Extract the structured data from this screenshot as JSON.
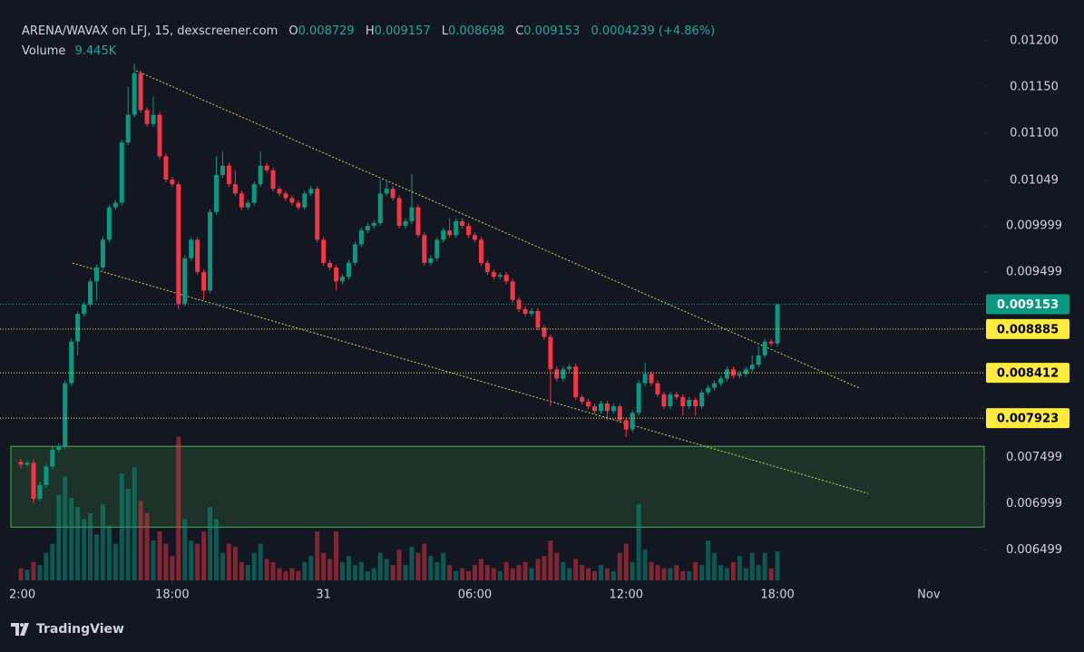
{
  "chart_data": {
    "type": "candlestick",
    "title": "ARENA/WAVAX on LFJ, 15, dexscreener.com",
    "header": {
      "open": {
        "label": "O",
        "value": 0.008729
      },
      "high": {
        "label": "H",
        "value": 0.009157
      },
      "low": {
        "label": "L",
        "value": 0.008698
      },
      "close": {
        "label": "C",
        "value": 0.009153
      },
      "change": 0.0004239,
      "change_pct": {
        "value": 4.86,
        "label": "(+4.86%)"
      }
    },
    "up_color": "#089981",
    "down_color": "#f23645",
    "x": [
      0,
      0.25,
      0.5,
      0.75,
      1,
      1.25,
      1.5,
      1.75,
      2,
      2.25,
      2.5,
      2.75,
      3,
      3.25,
      3.5,
      3.75,
      4,
      4.25,
      4.5,
      4.75,
      5,
      5.25,
      5.5,
      5.75,
      6,
      6.25,
      6.5,
      6.75,
      7,
      7.25,
      7.5,
      7.75,
      8,
      8.25,
      8.5,
      8.75,
      9,
      9.25,
      9.5,
      9.75,
      10,
      10.25,
      10.5,
      10.75,
      11,
      11.25,
      11.5,
      11.75,
      12,
      12.25,
      12.5,
      12.75,
      13,
      13.25,
      13.5,
      13.75,
      14,
      14.25,
      14.5,
      14.75,
      15,
      15.25,
      15.5,
      15.75,
      16,
      16.25,
      16.5,
      16.75,
      17,
      17.25,
      17.5,
      17.75,
      18,
      18.25,
      18.5,
      18.75,
      19,
      19.25,
      19.5,
      19.75,
      20,
      20.25,
      20.5,
      20.75,
      21,
      21.25,
      21.5,
      21.75,
      22,
      22.25,
      22.5,
      22.75,
      23,
      23.25,
      23.5,
      23.75,
      24,
      24.25,
      24.5,
      24.75,
      25,
      25.25,
      25.5,
      25.75,
      26,
      26.25,
      26.5,
      26.75,
      27,
      27.25,
      27.5,
      27.75,
      28,
      28.25,
      28.5,
      28.75,
      29,
      29.25,
      29.5,
      29.75,
      30
    ],
    "open": [
      0.00745,
      0.00742,
      0.00744,
      0.00705,
      0.0072,
      0.0074,
      0.00758,
      0.00762,
      0.0083,
      0.00875,
      0.00905,
      0.00915,
      0.0094,
      0.00955,
      0.00985,
      0.0102,
      0.01025,
      0.0109,
      0.0112,
      0.01165,
      0.01125,
      0.0111,
      0.0112,
      0.01075,
      0.0105,
      0.01045,
      0.00916,
      0.00965,
      0.00985,
      0.0095,
      0.0093,
      0.01015,
      0.01055,
      0.01065,
      0.01045,
      0.01035,
      0.0102,
      0.01025,
      0.01045,
      0.01065,
      0.0106,
      0.0104,
      0.01035,
      0.0103,
      0.01025,
      0.0102,
      0.01035,
      0.0104,
      0.00985,
      0.0096,
      0.00955,
      0.0094,
      0.00945,
      0.0096,
      0.0098,
      0.00995,
      0.01,
      0.01003,
      0.01035,
      0.0104,
      0.0103,
      0.01,
      0.01005,
      0.0102,
      0.0099,
      0.0096,
      0.00965,
      0.00985,
      0.00995,
      0.0099,
      0.01005,
      0.01,
      0.0099,
      0.00985,
      0.0096,
      0.0095,
      0.00945,
      0.00947,
      0.0094,
      0.0092,
      0.0091,
      0.00905,
      0.00908,
      0.0089,
      0.0088,
      0.00845,
      0.00835,
      0.00845,
      0.00848,
      0.00815,
      0.0081,
      0.00805,
      0.008,
      0.00808,
      0.008,
      0.00805,
      0.0079,
      0.0078,
      0.00798,
      0.0083,
      0.0084,
      0.0083,
      0.00818,
      0.00805,
      0.00818,
      0.00815,
      0.00805,
      0.00812,
      0.00805,
      0.0082,
      0.00825,
      0.0083,
      0.00835,
      0.00845,
      0.00838,
      0.0084,
      0.00845,
      0.0085,
      0.0086,
      0.00875,
      0.008729
    ],
    "high": [
      0.00748,
      0.00747,
      0.00747,
      0.00723,
      0.00743,
      0.00761,
      0.00765,
      0.00833,
      0.00878,
      0.00908,
      0.00918,
      0.00943,
      0.00958,
      0.00988,
      0.01023,
      0.01028,
      0.01093,
      0.0115,
      0.01175,
      0.01168,
      0.01128,
      0.0114,
      0.01123,
      0.01078,
      0.01053,
      0.01048,
      0.00968,
      0.00988,
      0.00988,
      0.00953,
      0.01018,
      0.01075,
      0.0108,
      0.01068,
      0.0106,
      0.01038,
      0.01028,
      0.01048,
      0.0108,
      0.01068,
      0.01063,
      0.01043,
      0.01038,
      0.01033,
      0.01028,
      0.01038,
      0.01043,
      0.01043,
      0.00988,
      0.00963,
      0.00958,
      0.00948,
      0.00963,
      0.00983,
      0.00998,
      0.01003,
      0.01006,
      0.0105,
      0.01048,
      0.01043,
      0.01033,
      0.01008,
      0.01056,
      0.01023,
      0.00993,
      0.00968,
      0.00988,
      0.00998,
      0.01008,
      0.01008,
      0.01008,
      0.01003,
      0.00993,
      0.00988,
      0.00963,
      0.00953,
      0.0095,
      0.0095,
      0.00943,
      0.00923,
      0.00913,
      0.00911,
      0.00911,
      0.00893,
      0.00883,
      0.00848,
      0.00848,
      0.00851,
      0.00851,
      0.00818,
      0.00813,
      0.00808,
      0.00811,
      0.00811,
      0.00808,
      0.00808,
      0.00793,
      0.00801,
      0.00833,
      0.00852,
      0.00843,
      0.00833,
      0.00821,
      0.00821,
      0.00821,
      0.00818,
      0.00815,
      0.00815,
      0.00823,
      0.00828,
      0.00833,
      0.00838,
      0.00848,
      0.00848,
      0.00843,
      0.00848,
      0.0086,
      0.0087,
      0.00878,
      0.00878,
      0.009157
    ],
    "low": [
      0.00738,
      0.00739,
      0.007,
      0.00702,
      0.00717,
      0.00737,
      0.00755,
      0.00759,
      0.00827,
      0.0086,
      0.00902,
      0.00912,
      0.0092,
      0.00952,
      0.00982,
      0.01017,
      0.01022,
      0.01087,
      0.01117,
      0.01122,
      0.01107,
      0.01107,
      0.01072,
      0.01047,
      0.01042,
      0.0091,
      0.00913,
      0.00962,
      0.00947,
      0.0092,
      0.00927,
      0.01012,
      0.01052,
      0.01042,
      0.01032,
      0.01017,
      0.01017,
      0.01022,
      0.01042,
      0.01057,
      0.01037,
      0.01032,
      0.01027,
      0.01022,
      0.01017,
      0.01017,
      0.01032,
      0.00982,
      0.00957,
      0.00952,
      0.0093,
      0.00937,
      0.00942,
      0.00957,
      0.00977,
      0.00992,
      0.00997,
      0.01,
      0.01032,
      0.01027,
      0.00997,
      0.00997,
      0.01002,
      0.00987,
      0.00957,
      0.00957,
      0.00962,
      0.00982,
      0.00987,
      0.00987,
      0.00997,
      0.00987,
      0.00982,
      0.00957,
      0.00947,
      0.00942,
      0.00942,
      0.00937,
      0.00917,
      0.00907,
      0.00902,
      0.00902,
      0.00887,
      0.00877,
      0.00805,
      0.00832,
      0.00832,
      0.00842,
      0.00812,
      0.00807,
      0.00802,
      0.00797,
      0.00797,
      0.0079,
      0.00797,
      0.00787,
      0.00772,
      0.00777,
      0.00795,
      0.00827,
      0.00827,
      0.00815,
      0.00802,
      0.00802,
      0.00812,
      0.00795,
      0.00802,
      0.00795,
      0.00802,
      0.00817,
      0.00822,
      0.00827,
      0.00832,
      0.00835,
      0.00835,
      0.00837,
      0.00842,
      0.00847,
      0.00857,
      0.0087,
      0.008698
    ],
    "close": [
      0.00742,
      0.00744,
      0.00705,
      0.0072,
      0.0074,
      0.00758,
      0.00762,
      0.0083,
      0.00875,
      0.00905,
      0.00915,
      0.0094,
      0.00955,
      0.00985,
      0.0102,
      0.01025,
      0.0109,
      0.0112,
      0.01165,
      0.01125,
      0.0111,
      0.0112,
      0.01075,
      0.0105,
      0.01045,
      0.00916,
      0.00965,
      0.00985,
      0.0095,
      0.0093,
      0.01015,
      0.01055,
      0.01065,
      0.01045,
      0.01035,
      0.0102,
      0.01025,
      0.01045,
      0.01065,
      0.0106,
      0.0104,
      0.01035,
      0.0103,
      0.01025,
      0.0102,
      0.01035,
      0.0104,
      0.00985,
      0.0096,
      0.00955,
      0.0094,
      0.00945,
      0.0096,
      0.0098,
      0.00995,
      0.01,
      0.01003,
      0.01035,
      0.0104,
      0.0103,
      0.01,
      0.01005,
      0.0102,
      0.0099,
      0.0096,
      0.00965,
      0.00985,
      0.00995,
      0.0099,
      0.01005,
      0.01,
      0.0099,
      0.00985,
      0.0096,
      0.0095,
      0.00945,
      0.00947,
      0.0094,
      0.0092,
      0.0091,
      0.00905,
      0.00908,
      0.0089,
      0.0088,
      0.00845,
      0.00835,
      0.00845,
      0.00848,
      0.00815,
      0.0081,
      0.00805,
      0.008,
      0.00808,
      0.008,
      0.00805,
      0.0079,
      0.0078,
      0.00798,
      0.0083,
      0.0084,
      0.0083,
      0.00818,
      0.00805,
      0.00818,
      0.00815,
      0.00805,
      0.00812,
      0.00805,
      0.0082,
      0.00825,
      0.0083,
      0.00835,
      0.00845,
      0.00838,
      0.0084,
      0.00845,
      0.0085,
      0.0086,
      0.00875,
      0.008729,
      0.009153
    ],
    "volume": {
      "name": "Volume",
      "axis": "y2",
      "last_label": "9.445K",
      "values": [
        4000,
        3500,
        6000,
        5000,
        9000,
        12000,
        28000,
        34000,
        27000,
        24000,
        20000,
        22000,
        15000,
        25000,
        18000,
        12000,
        35000,
        30000,
        37000,
        26000,
        22000,
        13000,
        16000,
        12000,
        8000,
        47000,
        20000,
        13000,
        12000,
        16000,
        24000,
        20000,
        9000,
        12000,
        11000,
        6000,
        5000,
        9000,
        12000,
        7000,
        6000,
        4000,
        3000,
        4000,
        3000,
        6000,
        8000,
        16000,
        9000,
        7000,
        16000,
        6000,
        8000,
        5000,
        6000,
        3000,
        4000,
        9000,
        7000,
        5000,
        10000,
        5000,
        11000,
        9000,
        12000,
        8000,
        6000,
        9000,
        5000,
        3000,
        4000,
        3000,
        5000,
        7000,
        5000,
        4000,
        3000,
        6000,
        4000,
        5000,
        6000,
        4000,
        7000,
        8000,
        13000,
        9000,
        6000,
        4000,
        7000,
        5000,
        4000,
        3000,
        5000,
        4000,
        3000,
        9000,
        12000,
        6000,
        25000,
        10000,
        6000,
        5000,
        4000,
        4000,
        5000,
        3000,
        3000,
        6000,
        5000,
        13000,
        9000,
        5000,
        4000,
        6000,
        8000,
        4000,
        9000,
        5000,
        9000,
        4000,
        9445
      ]
    },
    "xlim": [
      -0.83,
      38.2
    ],
    "ylim": [
      0.00617,
      0.01244
    ],
    "y2lim": [
      0,
      190000
    ],
    "xticks": [
      {
        "value": 0,
        "label": "2:00"
      },
      {
        "value": 6,
        "label": "18:00"
      },
      {
        "value": 12,
        "label": "31"
      },
      {
        "value": 18,
        "label": "06:00"
      },
      {
        "value": 24,
        "label": "12:00"
      },
      {
        "value": 30,
        "label": "18:00"
      },
      {
        "value": 36,
        "label": "Nov"
      }
    ],
    "yticks": [
      {
        "value": 0.012,
        "label": "0.01200"
      },
      {
        "value": 0.0115,
        "label": "0.01150"
      },
      {
        "value": 0.011,
        "label": "0.01100"
      },
      0.01049,
      0.009999,
      0.009499,
      0.007499,
      0.006999,
      0.006499
    ],
    "price_lines": [
      {
        "value": 0.009153,
        "color": "#089981",
        "text_color": "#ffffff"
      },
      {
        "value": 0.008885,
        "color": "#ffeb3b",
        "text_color": "#000000"
      },
      {
        "value": 0.008412,
        "color": "#ffeb3b",
        "text_color": "#000000"
      },
      {
        "value": 0.007923,
        "color": "#ffeb3b",
        "text_color": "#000000"
      }
    ],
    "zone": {
      "from": 0.006745,
      "to": 0.007618,
      "color": "#4caf50"
    },
    "trendlines": [
      {
        "x": [
          4.57,
          33.27
        ],
        "y": [
          0.011676,
          0.008245
        ],
        "color": "#d4d44a"
      },
      {
        "x": [
          2.05,
          33.6
        ],
        "y": [
          0.009598,
          0.007108
        ],
        "color": "#d4d44a"
      }
    ]
  },
  "footer": {
    "brand": "TradingView"
  }
}
